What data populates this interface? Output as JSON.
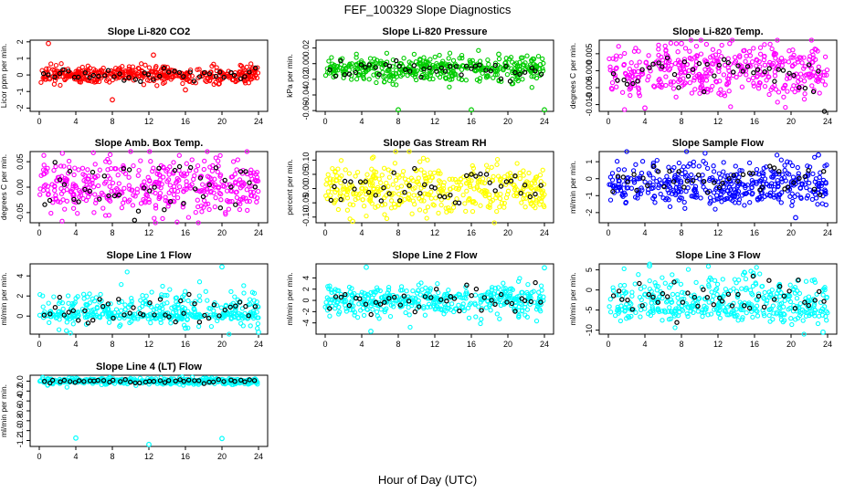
{
  "figure": {
    "title": "FEF_100329  Slope Diagnostics",
    "xlabel": "Hour of Day (UTC)"
  },
  "colors": {
    "red": "#ff0000",
    "green": "#00cc00",
    "magenta": "#ff00ff",
    "yellow": "#ffff00",
    "blue": "#0000ff",
    "cyan": "#00ffff",
    "black": "#000000"
  },
  "chart_data": [
    {
      "type": "scatter",
      "title": "Slope Li-820 CO2",
      "ylabel": "Licor ppm per min.",
      "xlim": [
        -1,
        25
      ],
      "ylim": [
        -2.2,
        2.1
      ],
      "xticks": [
        0,
        4,
        8,
        12,
        16,
        20,
        24
      ],
      "yticks": [
        -2,
        -1,
        0,
        1,
        2
      ],
      "color": "red",
      "cloud": {
        "center": 0,
        "spread": 0.25
      },
      "outliers": [
        {
          "x": 1,
          "y": 1.9
        },
        {
          "x": 8,
          "y": -1.5
        },
        {
          "x": 12.5,
          "y": 1.2
        },
        {
          "x": 16,
          "y": -0.9
        }
      ]
    },
    {
      "type": "scatter",
      "title": "Slope Li-820 Pressure",
      "ylabel": "kPa per min.",
      "xlim": [
        -1,
        25
      ],
      "ylim": [
        -0.061,
        0.03
      ],
      "xticks": [
        0,
        4,
        8,
        12,
        16,
        20,
        24
      ],
      "yticks": [
        -0.06,
        -0.04,
        -0.02,
        0.0,
        0.02
      ],
      "ytick_labels": [
        "-0.06",
        "-0.04",
        "-0.02",
        "0.00",
        "0.02"
      ],
      "color": "green",
      "cloud": {
        "center": -0.007,
        "spread": 0.008
      },
      "outliers": [
        {
          "x": 8,
          "y": -0.059
        },
        {
          "x": 16,
          "y": -0.059
        },
        {
          "x": 24,
          "y": -0.059
        },
        {
          "x": 19,
          "y": 0.012
        }
      ]
    },
    {
      "type": "scatter",
      "title": "Slope Li-820 Temp.",
      "ylabel": "degrees C per min.",
      "xlim": [
        -1,
        25
      ],
      "ylim": [
        -0.012,
        0.009
      ],
      "xticks": [
        0,
        4,
        8,
        12,
        16,
        20,
        24
      ],
      "yticks": [
        -0.01,
        -0.005,
        0.0,
        0.005
      ],
      "ytick_labels": [
        "-0.010",
        "-0.005",
        "0.000",
        "0.005"
      ],
      "color": "magenta",
      "cloud": {
        "center": 0.0,
        "spread": 0.004
      },
      "outliers": [
        {
          "x": 4,
          "y": -0.011
        },
        {
          "x": 8,
          "y": 0.008
        }
      ]
    },
    {
      "type": "scatter",
      "title": "Slope Amb. Box Temp.",
      "ylabel": "degrees C per min.",
      "xlim": [
        -1,
        25
      ],
      "ylim": [
        -0.07,
        0.07
      ],
      "xticks": [
        0,
        4,
        8,
        12,
        16,
        20,
        24
      ],
      "yticks": [
        -0.05,
        0.0,
        0.05
      ],
      "ytick_labels": [
        "-0.05",
        "0.00",
        "0.05"
      ],
      "color": "magenta",
      "cloud": {
        "center": 0.0,
        "spread": 0.03
      },
      "outliers": []
    },
    {
      "type": "scatter",
      "title": "Slope Gas Stream RH",
      "ylabel": "percent per min.",
      "xlim": [
        -1,
        25
      ],
      "ylim": [
        -0.12,
        0.13
      ],
      "xticks": [
        0,
        4,
        8,
        12,
        16,
        20,
        24
      ],
      "yticks": [
        -0.1,
        -0.05,
        0.0,
        0.05,
        0.1
      ],
      "ytick_labels": [
        "-0.10",
        "-0.05",
        "0.00",
        "0.05",
        "0.10"
      ],
      "color": "yellow",
      "cloud": {
        "center": 0.0,
        "spread": 0.045
      },
      "outliers": [
        {
          "x": 3,
          "y": -0.115
        }
      ]
    },
    {
      "type": "scatter",
      "title": "Slope Sample Flow",
      "ylabel": "ml/min per min.",
      "xlim": [
        -1,
        25
      ],
      "ylim": [
        -2.6,
        1.6
      ],
      "xticks": [
        0,
        4,
        8,
        12,
        16,
        20,
        24
      ],
      "yticks": [
        -2,
        -1,
        0,
        1
      ],
      "color": "blue",
      "cloud": {
        "center": -0.1,
        "spread": 0.6
      },
      "outliers": [
        {
          "x": 20.5,
          "y": -2.3
        },
        {
          "x": 23,
          "y": 1.4
        }
      ]
    },
    {
      "type": "scatter",
      "title": "Slope Line 1 Flow",
      "ylabel": "ml/min per min.",
      "xlim": [
        -1,
        25
      ],
      "ylim": [
        -1.8,
        5.2
      ],
      "xticks": [
        0,
        4,
        8,
        12,
        16,
        20,
        24
      ],
      "yticks": [
        0,
        2,
        4
      ],
      "color": "cyan",
      "cloud": {
        "center": 0.7,
        "spread": 0.9
      },
      "outliers": [
        {
          "x": 20,
          "y": 4.9
        },
        {
          "x": 24,
          "y": -1.6
        },
        {
          "x": 16,
          "y": -1.2
        }
      ]
    },
    {
      "type": "scatter",
      "title": "Slope Line 2 Flow",
      "ylabel": "ml/min per min.",
      "xlim": [
        -1,
        25
      ],
      "ylim": [
        -6,
        6.5
      ],
      "xticks": [
        0,
        4,
        8,
        12,
        16,
        20,
        24
      ],
      "yticks": [
        -4,
        -2,
        0,
        2,
        4
      ],
      "color": "cyan",
      "cloud": {
        "center": 0,
        "spread": 1.3
      },
      "outliers": [
        {
          "x": 4.5,
          "y": 5.9
        },
        {
          "x": 5,
          "y": -5.5
        },
        {
          "x": 24,
          "y": 5.8
        }
      ]
    },
    {
      "type": "scatter",
      "title": "Slope Line 3 Flow",
      "ylabel": "ml/min per min.",
      "xlim": [
        -1,
        25
      ],
      "ylim": [
        -11,
        6.5
      ],
      "xticks": [
        0,
        4,
        8,
        12,
        16,
        20,
        24
      ],
      "yticks": [
        -10,
        -5,
        0,
        5
      ],
      "color": "cyan",
      "cloud": {
        "center": -1.5,
        "spread": 3
      },
      "outliers": [
        {
          "x": 4.5,
          "y": 6
        },
        {
          "x": 23.5,
          "y": -10.5
        }
      ]
    },
    {
      "type": "scatter",
      "title": "Slope Line 4 (LT) Flow",
      "ylabel": "ml/min per min.",
      "xlim": [
        -1,
        25
      ],
      "ylim": [
        -1.32,
        0.12
      ],
      "xticks": [
        0,
        4,
        8,
        12,
        16,
        20,
        24
      ],
      "yticks": [
        -1.2,
        -1.0,
        -0.8,
        -0.6,
        -0.4,
        -0.2,
        0.0
      ],
      "ytick_labels": [
        "-1.2",
        "-1.0",
        "-0.8",
        "-0.6",
        "-0.4",
        "-0.2",
        "0.0"
      ],
      "color": "cyan",
      "cloud": {
        "center": 0.0,
        "spread": 0.03
      },
      "outliers": [
        {
          "x": 4,
          "y": -1.15
        },
        {
          "x": 12,
          "y": -1.28
        },
        {
          "x": 20,
          "y": -1.16
        }
      ]
    }
  ]
}
